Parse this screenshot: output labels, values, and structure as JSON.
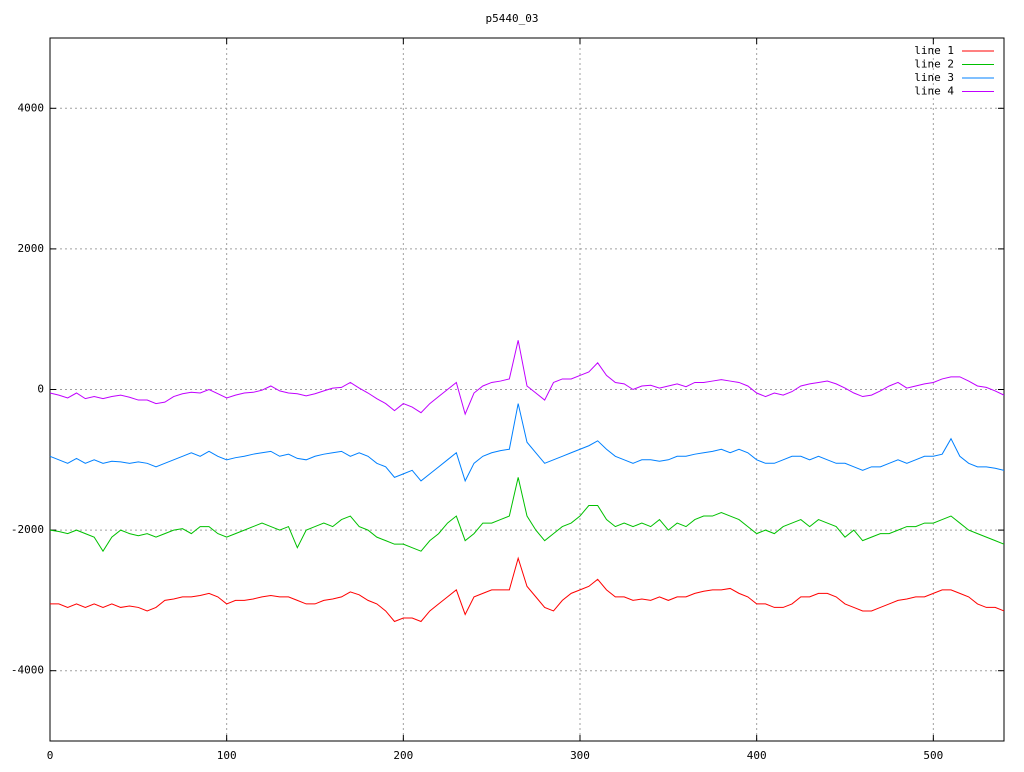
{
  "chart_data": {
    "type": "line",
    "title": "p5440_03",
    "x": [
      0,
      5,
      10,
      15,
      20,
      25,
      30,
      35,
      40,
      45,
      50,
      55,
      60,
      65,
      70,
      75,
      80,
      85,
      90,
      95,
      100,
      105,
      110,
      115,
      120,
      125,
      130,
      135,
      140,
      145,
      150,
      155,
      160,
      165,
      170,
      175,
      180,
      185,
      190,
      195,
      200,
      205,
      210,
      215,
      220,
      225,
      230,
      235,
      240,
      245,
      250,
      255,
      260,
      265,
      270,
      275,
      280,
      285,
      290,
      295,
      300,
      305,
      310,
      315,
      320,
      325,
      330,
      335,
      340,
      345,
      350,
      355,
      360,
      365,
      370,
      375,
      380,
      385,
      390,
      395,
      400,
      405,
      410,
      415,
      420,
      425,
      430,
      435,
      440,
      445,
      450,
      455,
      460,
      465,
      470,
      475,
      480,
      485,
      490,
      495,
      500,
      505,
      510,
      515,
      520,
      525,
      530,
      535,
      540
    ],
    "series": [
      {
        "name": "line 1",
        "color": "#ff0000",
        "values": [
          -3050,
          -3050,
          -3100,
          -3050,
          -3100,
          -3050,
          -3100,
          -3050,
          -3100,
          -3080,
          -3100,
          -3150,
          -3100,
          -3000,
          -2980,
          -2950,
          -2950,
          -2930,
          -2900,
          -2950,
          -3050,
          -3000,
          -3000,
          -2980,
          -2950,
          -2930,
          -2950,
          -2950,
          -3000,
          -3050,
          -3050,
          -3000,
          -2980,
          -2950,
          -2880,
          -2920,
          -3000,
          -3050,
          -3150,
          -3300,
          -3250,
          -3250,
          -3300,
          -3150,
          -3050,
          -2950,
          -2850,
          -3200,
          -2950,
          -2900,
          -2850,
          -2850,
          -2850,
          -2400,
          -2800,
          -2950,
          -3100,
          -3150,
          -3000,
          -2900,
          -2850,
          -2800,
          -2700,
          -2850,
          -2950,
          -2950,
          -3000,
          -2980,
          -3000,
          -2950,
          -3000,
          -2950,
          -2950,
          -2900,
          -2870,
          -2850,
          -2850,
          -2830,
          -2900,
          -2950,
          -3050,
          -3050,
          -3100,
          -3100,
          -3050,
          -2950,
          -2950,
          -2900,
          -2900,
          -2950,
          -3050,
          -3100,
          -3150,
          -3150,
          -3100,
          -3050,
          -3000,
          -2980,
          -2950,
          -2950,
          -2900,
          -2850,
          -2850,
          -2900,
          -2950,
          -3050,
          -3100,
          -3100,
          -3150
        ]
      },
      {
        "name": "line 2",
        "color": "#00c000",
        "values": [
          -2000,
          -2020,
          -2050,
          -2000,
          -2050,
          -2100,
          -2300,
          -2100,
          -2000,
          -2050,
          -2080,
          -2050,
          -2100,
          -2050,
          -2000,
          -1980,
          -2050,
          -1950,
          -1950,
          -2050,
          -2100,
          -2050,
          -2000,
          -1950,
          -1900,
          -1950,
          -2000,
          -1950,
          -2250,
          -2000,
          -1950,
          -1900,
          -1950,
          -1850,
          -1800,
          -1950,
          -2000,
          -2100,
          -2150,
          -2200,
          -2200,
          -2250,
          -2300,
          -2150,
          -2050,
          -1900,
          -1800,
          -2150,
          -2050,
          -1900,
          -1900,
          -1850,
          -1800,
          -1250,
          -1800,
          -2000,
          -2150,
          -2050,
          -1950,
          -1900,
          -1800,
          -1650,
          -1650,
          -1850,
          -1950,
          -1900,
          -1950,
          -1900,
          -1950,
          -1850,
          -2000,
          -1900,
          -1950,
          -1850,
          -1800,
          -1800,
          -1750,
          -1800,
          -1850,
          -1950,
          -2050,
          -2000,
          -2050,
          -1950,
          -1900,
          -1850,
          -1950,
          -1850,
          -1900,
          -1950,
          -2100,
          -2000,
          -2150,
          -2100,
          -2050,
          -2050,
          -2000,
          -1950,
          -1950,
          -1900,
          -1900,
          -1850,
          -1800,
          -1900,
          -2000,
          -2050,
          -2100,
          -2150,
          -2200
        ]
      },
      {
        "name": "line 3",
        "color": "#0080ff",
        "values": [
          -950,
          -1000,
          -1050,
          -980,
          -1050,
          -1000,
          -1050,
          -1020,
          -1030,
          -1050,
          -1030,
          -1050,
          -1100,
          -1050,
          -1000,
          -950,
          -900,
          -950,
          -880,
          -950,
          -1000,
          -970,
          -950,
          -920,
          -900,
          -880,
          -950,
          -920,
          -980,
          -1000,
          -950,
          -920,
          -900,
          -880,
          -950,
          -900,
          -950,
          -1050,
          -1100,
          -1250,
          -1200,
          -1150,
          -1300,
          -1200,
          -1100,
          -1000,
          -900,
          -1300,
          -1050,
          -950,
          -900,
          -870,
          -850,
          -200,
          -750,
          -900,
          -1050,
          -1000,
          -950,
          -900,
          -850,
          -800,
          -730,
          -850,
          -950,
          -1000,
          -1050,
          -1000,
          -1000,
          -1020,
          -1000,
          -950,
          -950,
          -920,
          -900,
          -880,
          -850,
          -900,
          -850,
          -900,
          -1000,
          -1050,
          -1050,
          -1000,
          -950,
          -950,
          -1000,
          -950,
          -1000,
          -1050,
          -1050,
          -1100,
          -1150,
          -1100,
          -1100,
          -1050,
          -1000,
          -1050,
          -1000,
          -950,
          -950,
          -920,
          -700,
          -950,
          -1050,
          -1100,
          -1100,
          -1120,
          -1150
        ]
      },
      {
        "name": "line 4",
        "color": "#c000ff",
        "values": [
          -50,
          -80,
          -120,
          -50,
          -130,
          -100,
          -130,
          -100,
          -80,
          -110,
          -150,
          -150,
          -200,
          -180,
          -100,
          -60,
          -40,
          -50,
          0,
          -60,
          -120,
          -80,
          -50,
          -40,
          -10,
          50,
          -20,
          -50,
          -60,
          -90,
          -60,
          -20,
          20,
          30,
          100,
          20,
          -50,
          -130,
          -200,
          -300,
          -200,
          -250,
          -330,
          -200,
          -100,
          0,
          100,
          -350,
          -50,
          50,
          100,
          120,
          150,
          700,
          50,
          -50,
          -150,
          100,
          150,
          150,
          200,
          250,
          380,
          200,
          100,
          80,
          0,
          50,
          60,
          20,
          50,
          80,
          40,
          100,
          100,
          120,
          140,
          120,
          100,
          50,
          -50,
          -100,
          -50,
          -80,
          -30,
          50,
          80,
          100,
          120,
          80,
          20,
          -50,
          -100,
          -80,
          -20,
          50,
          100,
          20,
          50,
          80,
          100,
          150,
          180,
          180,
          120,
          50,
          30,
          -20,
          -80
        ]
      }
    ],
    "xlim": [
      0,
      540
    ],
    "ylim": [
      -5000,
      5000
    ],
    "xticks": [
      0,
      100,
      200,
      300,
      400,
      500
    ],
    "yticks": [
      -4000,
      -2000,
      0,
      2000,
      4000
    ],
    "grid": true,
    "legend": "top-right"
  }
}
